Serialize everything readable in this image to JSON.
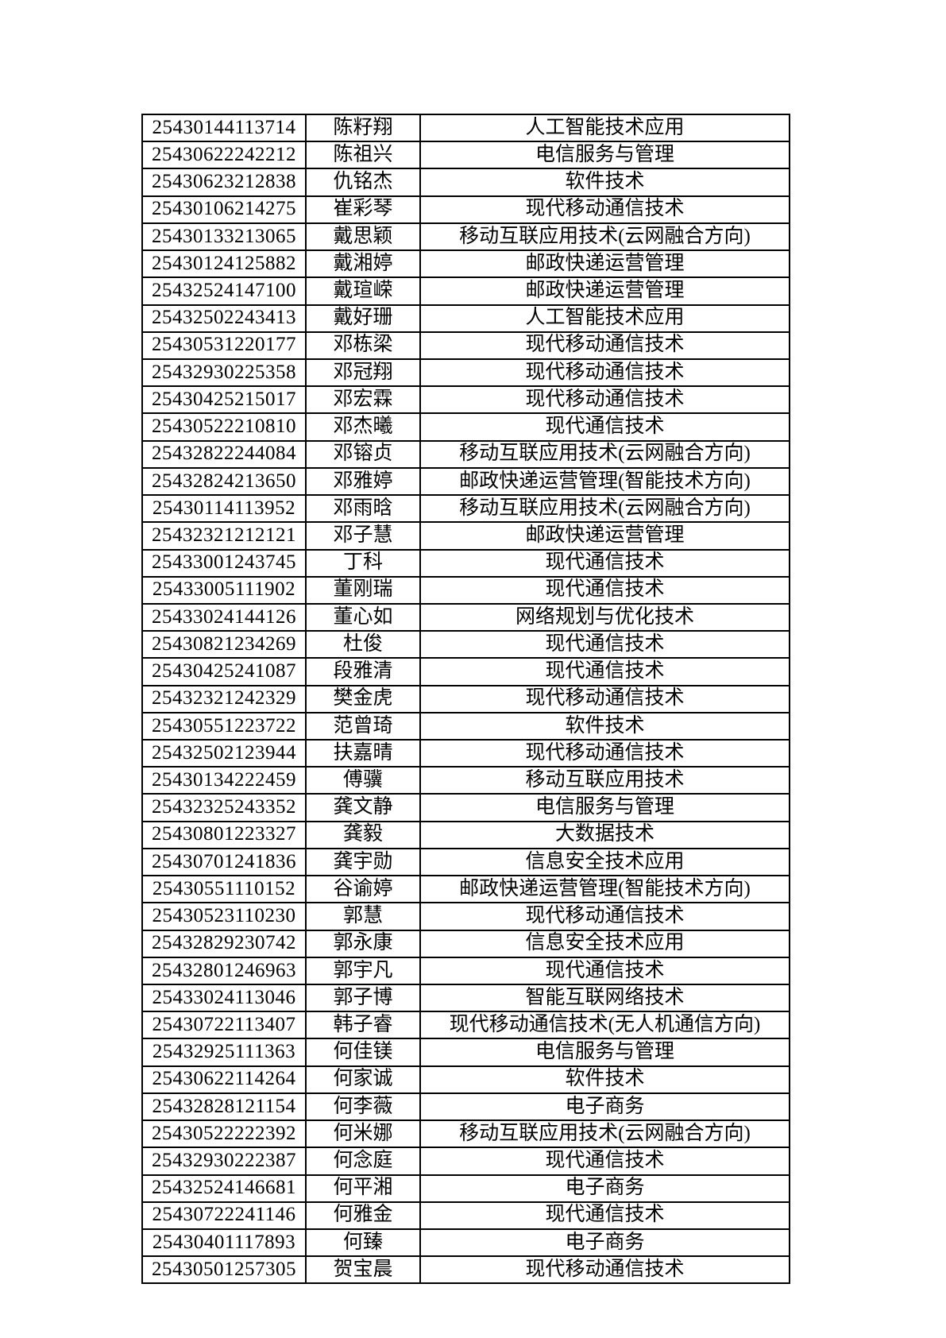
{
  "page": {
    "background_color": "#ffffff",
    "border_color": "#000000"
  },
  "table": {
    "columns": [
      {
        "key": "student_id",
        "label": ""
      },
      {
        "key": "name",
        "label": ""
      },
      {
        "key": "major",
        "label": ""
      }
    ],
    "rows": [
      [
        "25430144113714",
        "陈籽翔",
        "人工智能技术应用"
      ],
      [
        "25430622242212",
        "陈祖兴",
        "电信服务与管理"
      ],
      [
        "25430623212838",
        "仇铭杰",
        "软件技术"
      ],
      [
        "25430106214275",
        "崔彩琴",
        "现代移动通信技术"
      ],
      [
        "25430133213065",
        "戴思颖",
        "移动互联应用技术(云网融合方向)"
      ],
      [
        "25430124125882",
        "戴湘婷",
        "邮政快递运营管理"
      ],
      [
        "25432524147100",
        "戴瑄嵘",
        "邮政快递运营管理"
      ],
      [
        "25432502243413",
        "戴好珊",
        "人工智能技术应用"
      ],
      [
        "25430531220177",
        "邓栋梁",
        "现代移动通信技术"
      ],
      [
        "25432930225358",
        "邓冠翔",
        "现代移动通信技术"
      ],
      [
        "25430425215017",
        "邓宏霖",
        "现代移动通信技术"
      ],
      [
        "25430522210810",
        "邓杰曦",
        "现代通信技术"
      ],
      [
        "25432822244084",
        "邓镕贞",
        "移动互联应用技术(云网融合方向)"
      ],
      [
        "25432824213650",
        "邓雅婷",
        "邮政快递运营管理(智能技术方向)"
      ],
      [
        "25430114113952",
        "邓雨晗",
        "移动互联应用技术(云网融合方向)"
      ],
      [
        "25432321212121",
        "邓子慧",
        "邮政快递运营管理"
      ],
      [
        "25433001243745",
        "丁科",
        "现代通信技术"
      ],
      [
        "25433005111902",
        "董刚瑞",
        "现代通信技术"
      ],
      [
        "25433024144126",
        "董心如",
        "网络规划与优化技术"
      ],
      [
        "25430821234269",
        "杜俊",
        "现代通信技术"
      ],
      [
        "25430425241087",
        "段雅清",
        "现代通信技术"
      ],
      [
        "25432321242329",
        "樊金虎",
        "现代移动通信技术"
      ],
      [
        "25430551223722",
        "范曾琦",
        "软件技术"
      ],
      [
        "25432502123944",
        "扶嘉晴",
        "现代移动通信技术"
      ],
      [
        "25430134222459",
        "傅骥",
        "移动互联应用技术"
      ],
      [
        "25432325243352",
        "龚文静",
        "电信服务与管理"
      ],
      [
        "25430801223327",
        "龚毅",
        "大数据技术"
      ],
      [
        "25430701241836",
        "龚宇勋",
        "信息安全技术应用"
      ],
      [
        "25430551110152",
        "谷谕婷",
        "邮政快递运营管理(智能技术方向)"
      ],
      [
        "25430523110230",
        "郭慧",
        "现代移动通信技术"
      ],
      [
        "25432829230742",
        "郭永康",
        "信息安全技术应用"
      ],
      [
        "25432801246963",
        "郭宇凡",
        "现代通信技术"
      ],
      [
        "25433024113046",
        "郭子博",
        "智能互联网络技术"
      ],
      [
        "25430722113407",
        "韩子睿",
        "现代移动通信技术(无人机通信方向)"
      ],
      [
        "25432925111363",
        "何佳镁",
        "电信服务与管理"
      ],
      [
        "25430622114264",
        "何家诚",
        "软件技术"
      ],
      [
        "25432828121154",
        "何李薇",
        "电子商务"
      ],
      [
        "25430522222392",
        "何米娜",
        "移动互联应用技术(云网融合方向)"
      ],
      [
        "25432930222387",
        "何念庭",
        "现代通信技术"
      ],
      [
        "25432524146681",
        "何平湘",
        "电子商务"
      ],
      [
        "25430722241146",
        "何雅金",
        "现代通信技术"
      ],
      [
        "25430401117893",
        "何臻",
        "电子商务"
      ],
      [
        "25430501257305",
        "贺宝晨",
        "现代移动通信技术"
      ]
    ]
  }
}
